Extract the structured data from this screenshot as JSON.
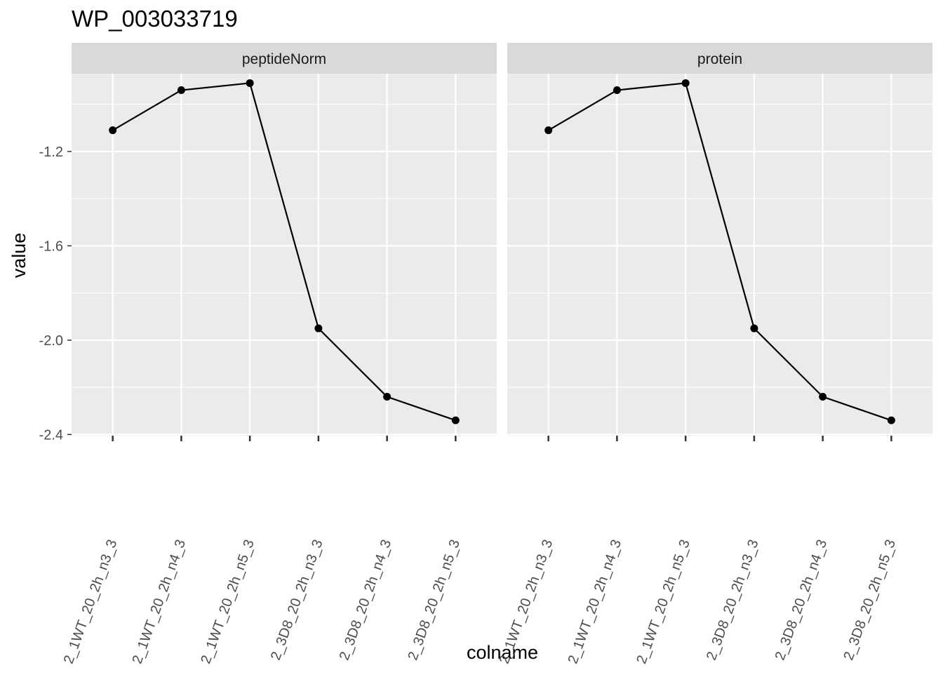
{
  "chart_data": {
    "type": "line",
    "title": "WP_003033719",
    "xlabel": "colname",
    "ylabel": "value",
    "x_tick_labels": [
      "2_1WT_20_2h_n3_3",
      "2_1WT_20_2h_n4_3",
      "2_1WT_20_2h_n5_3",
      "2_3D8_20_2h_n3_3",
      "2_3D8_20_2h_n4_3",
      "2_3D8_20_2h_n5_3"
    ],
    "y_ticks": [
      -1.2,
      -1.6,
      -2.0,
      -2.4
    ],
    "y_tick_labels": [
      "-1.2",
      "-1.6",
      "-2.0",
      "-2.4"
    ],
    "ylim": [
      -2.405,
      -0.87
    ],
    "grid": true,
    "legend": "none",
    "colors": {
      "panel_background": "#ebebeb",
      "strip_background": "#d9d9d9",
      "gridline": "#ffffff",
      "line": "#000000",
      "point": "#000000"
    },
    "panels": [
      {
        "name": "peptideNorm",
        "values": [
          -1.11,
          -0.94,
          -0.91,
          -1.95,
          -2.24,
          -2.34
        ]
      },
      {
        "name": "protein",
        "values": [
          -1.11,
          -0.94,
          -0.91,
          -1.95,
          -2.24,
          -2.34
        ]
      }
    ]
  }
}
